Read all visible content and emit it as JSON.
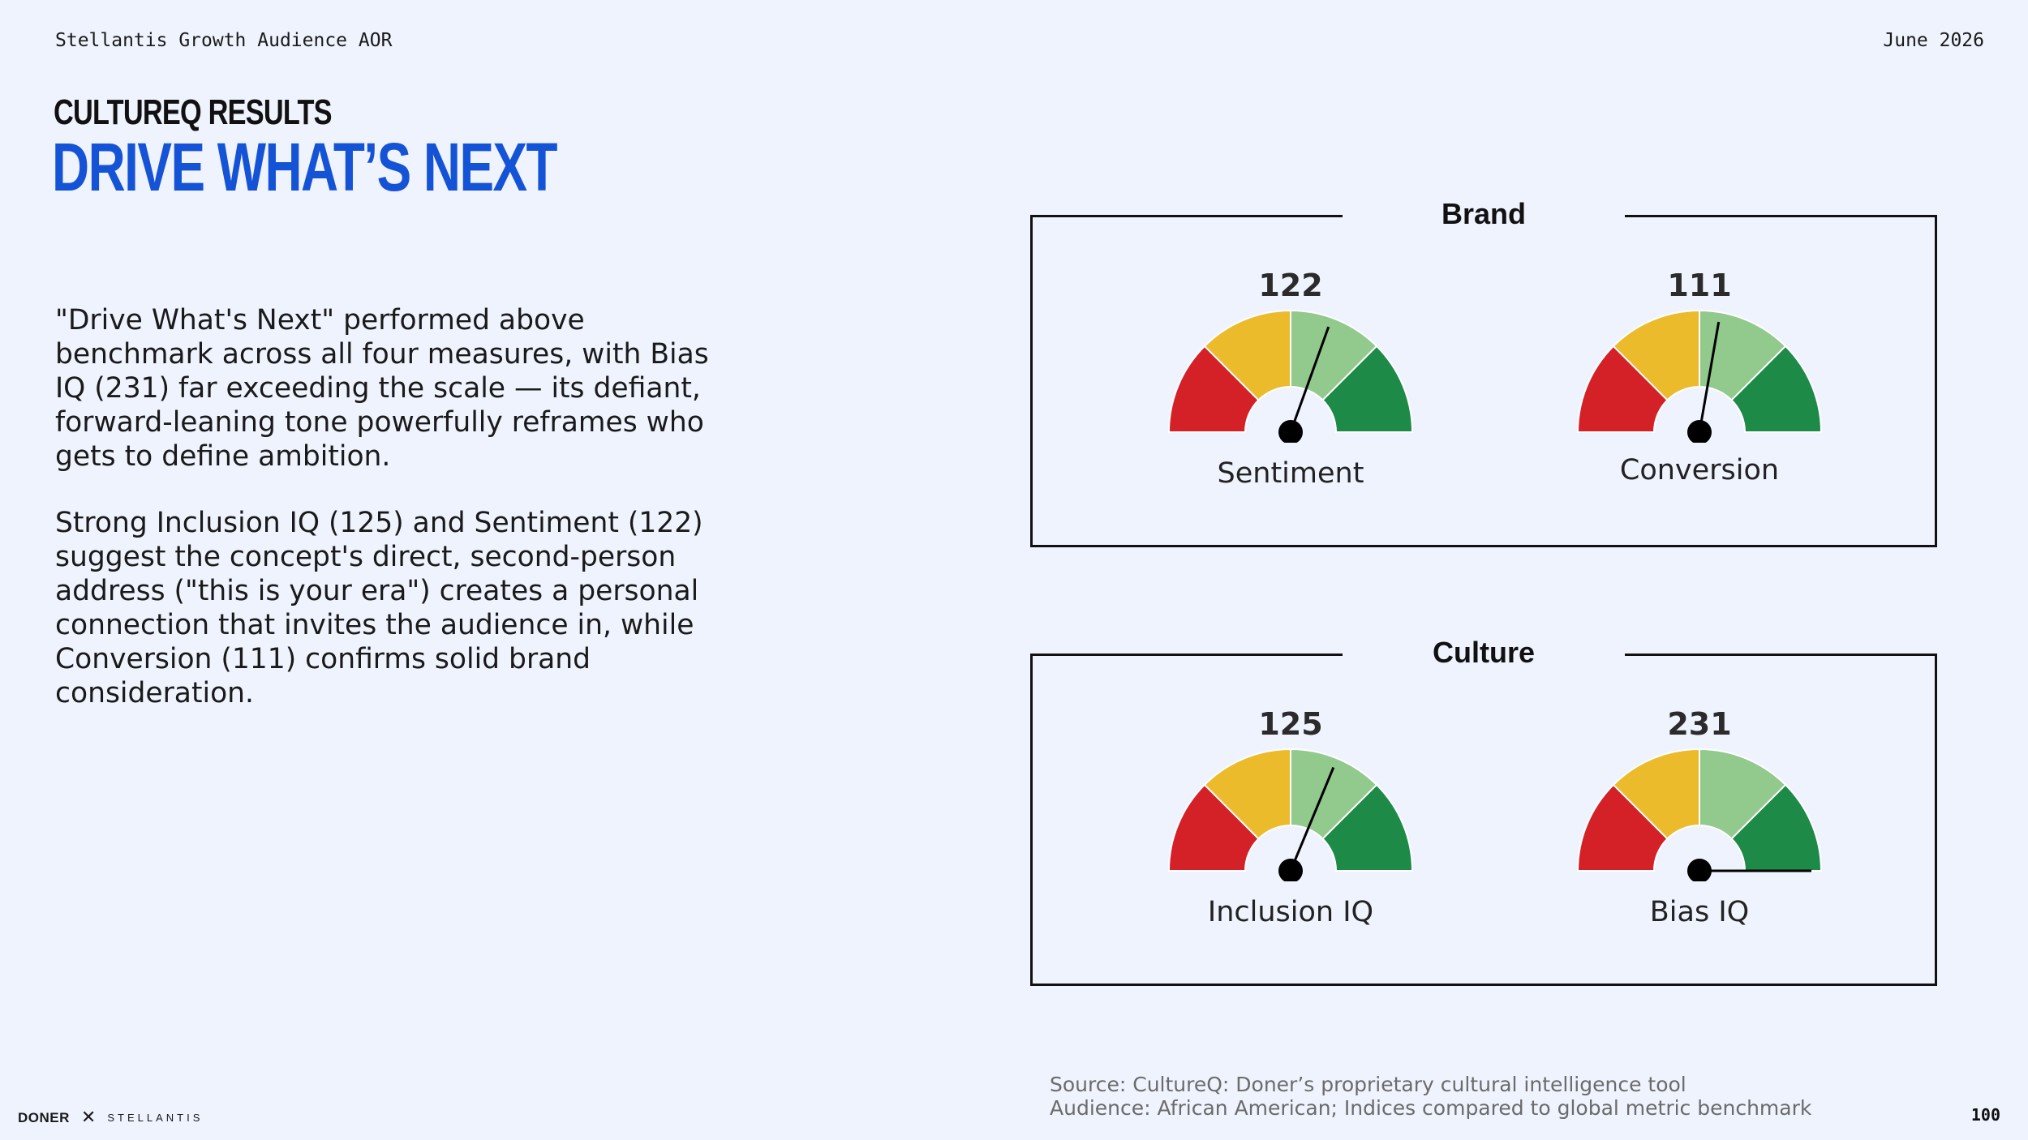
{
  "header": {
    "left": "Stellantis Growth Audience AOR",
    "right": "June 2026"
  },
  "eyebrow": "CultureQ Results",
  "title": "Drive What’s Next",
  "body": {
    "para1": "\"Drive What's Next\" performed above benchmark across all four measures, with Bias IQ (231) far exceeding the scale — its defiant, forward-leaning tone powerfully reframes who gets to define ambition.",
    "para2": "Strong Inclusion IQ (125) and Sentiment (122) suggest the concept's direct, second-person address (\"this is your era\") creates a personal connection that invites the audience in, while Conversion (111) confirms solid brand consideration."
  },
  "colors": {
    "red": "#d42027",
    "yellow": "#ecbb2c",
    "light_green": "#92c98d",
    "dark_green": "#1d8a47",
    "title_blue": "#1553d6",
    "background": "#eff3fe"
  },
  "chart_data": {
    "type": "gauge",
    "scale": {
      "min": 0,
      "max": 200
    },
    "zones": [
      "red",
      "yellow",
      "light_green",
      "dark_green"
    ],
    "groups": [
      {
        "title": "Brand",
        "gauges": [
          {
            "label": "Sentiment",
            "value": 122
          },
          {
            "label": "Conversion",
            "value": 111
          }
        ]
      },
      {
        "title": "Culture",
        "gauges": [
          {
            "label": "Inclusion IQ",
            "value": 125
          },
          {
            "label": "Bias IQ",
            "value": 231
          }
        ]
      }
    ]
  },
  "footer": {
    "logo_doner": "DONER",
    "logo_separator": "✕",
    "logo_stellantis": "STELLANTIS",
    "source_line1": "Source: CultureQ: Doner’s proprietary cultural intelligence tool",
    "source_line2": "Audience: African American; Indices compared to global metric benchmark",
    "page_number": "100"
  }
}
